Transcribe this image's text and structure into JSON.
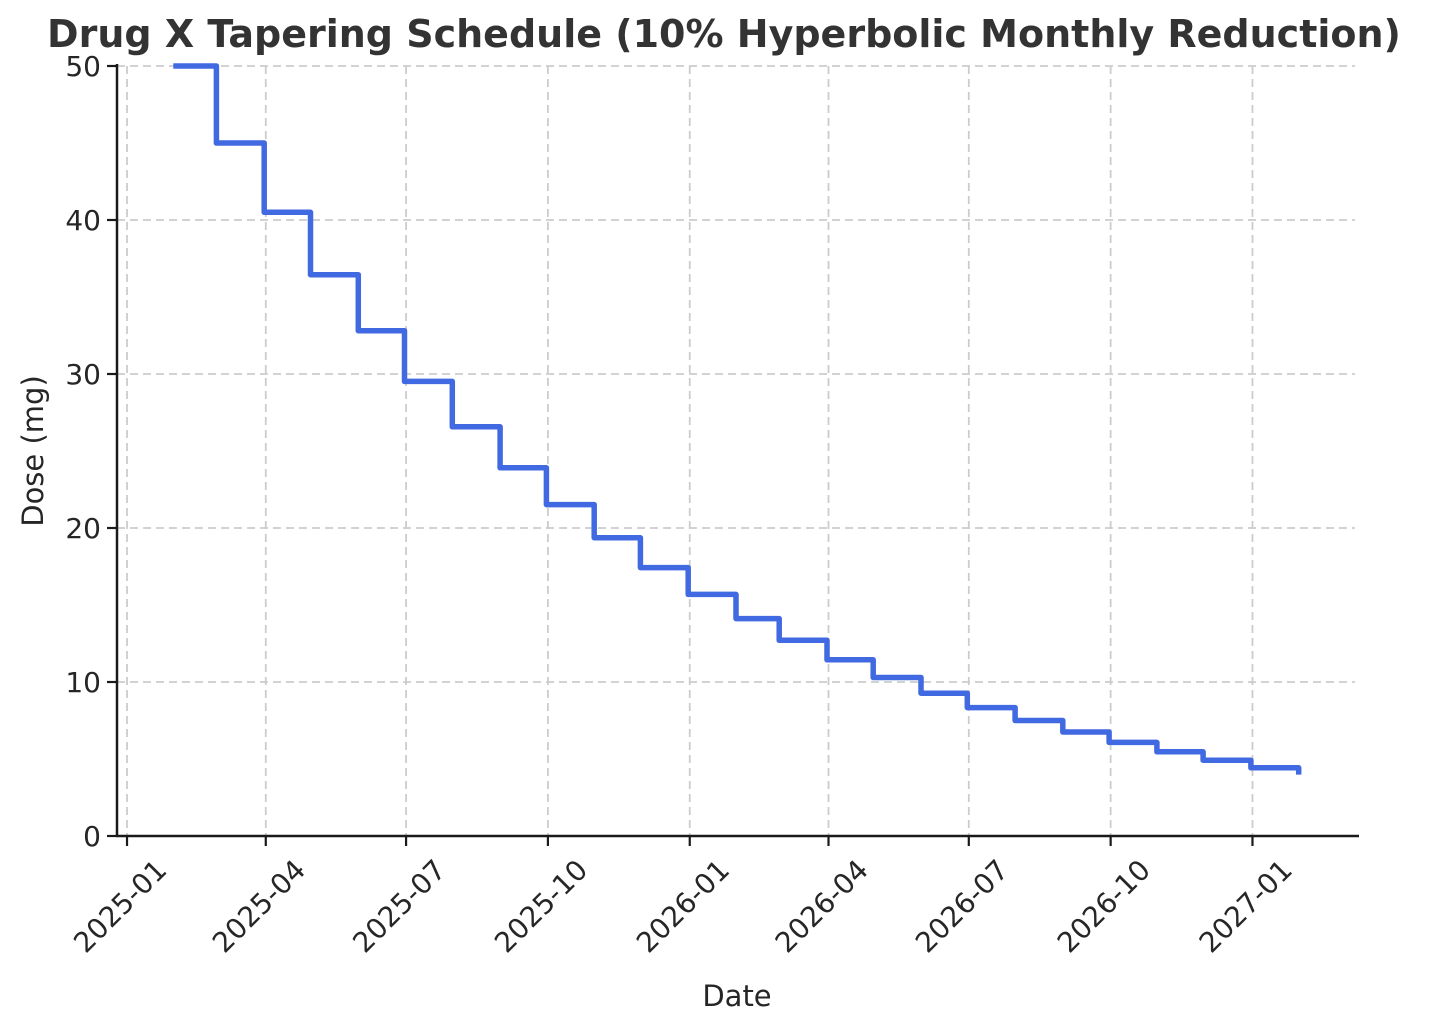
{
  "chart_data": {
    "type": "line",
    "step_style": "post",
    "title": "Drug X Tapering Schedule (10% Hyperbolic Monthly Reduction)",
    "xlabel": "Date",
    "ylabel": "Dose (mg)",
    "ylim": [
      0,
      50
    ],
    "y_ticks": [
      0,
      10,
      20,
      30,
      40,
      50
    ],
    "x_tick_labels": [
      "2025-01",
      "2025-04",
      "2025-07",
      "2025-10",
      "2026-01",
      "2026-04",
      "2026-07",
      "2026-10",
      "2027-01"
    ],
    "grid": "dashed",
    "legend": "none",
    "x_margin_frac": 0.05,
    "series": [
      {
        "name": "Dose",
        "dates": [
          "2025-01-31",
          "2025-02-28",
          "2025-03-31",
          "2025-04-30",
          "2025-05-31",
          "2025-06-30",
          "2025-07-31",
          "2025-08-31",
          "2025-09-30",
          "2025-10-31",
          "2025-11-30",
          "2025-12-31",
          "2026-01-31",
          "2026-02-28",
          "2026-03-31",
          "2026-04-30",
          "2026-05-31",
          "2026-06-30",
          "2026-07-31",
          "2026-08-31",
          "2026-09-30",
          "2026-10-31",
          "2026-11-30",
          "2026-12-31",
          "2027-01-31"
        ],
        "values": [
          50,
          45,
          40.5,
          36.45,
          32.81,
          29.52,
          26.57,
          23.91,
          21.52,
          19.37,
          17.43,
          15.69,
          14.12,
          12.71,
          11.44,
          10.29,
          9.27,
          8.34,
          7.5,
          6.75,
          6.08,
          5.47,
          4.92,
          4.43,
          3.99
        ]
      }
    ],
    "colors": {
      "line": "#4169E1",
      "grid": "#cccccc",
      "spine": "#1a1a1a",
      "tick_text": "#262626",
      "title_text": "#333333",
      "background": "#ffffff"
    },
    "line_width": 5.5
  }
}
